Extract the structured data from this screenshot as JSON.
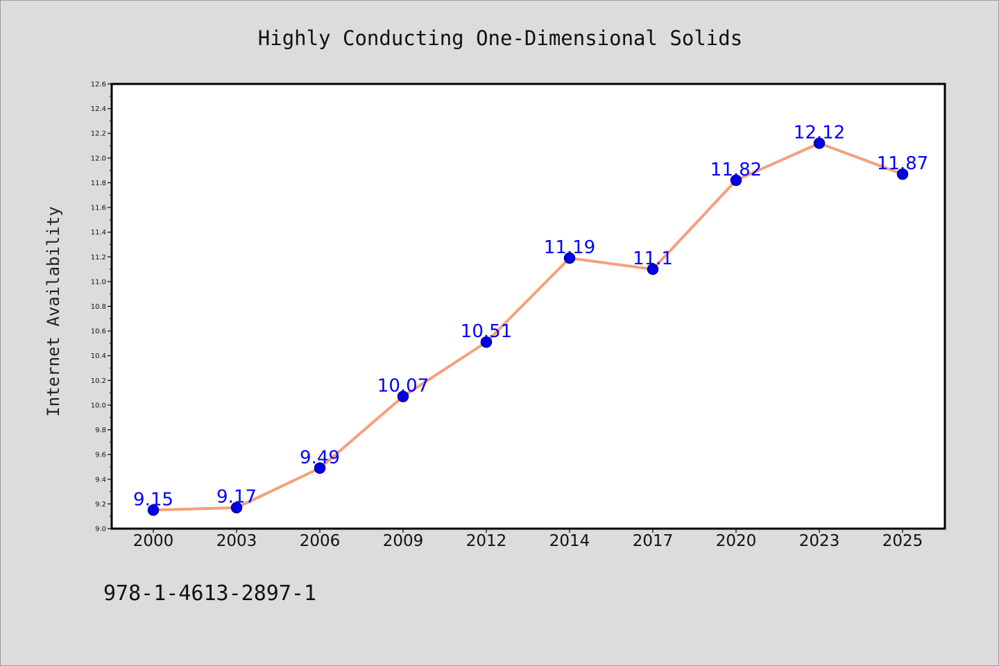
{
  "chart_data": {
    "type": "line",
    "title": "Highly Conducting One-Dimensional Solids",
    "xlabel": "",
    "ylabel": "Internet Availability",
    "categories": [
      "2000",
      "2003",
      "2006",
      "2009",
      "2012",
      "2014",
      "2017",
      "2020",
      "2023",
      "2025"
    ],
    "series": [
      {
        "values": [
          9.15,
          9.17,
          9.49,
          10.07,
          10.51,
          11.19,
          11.1,
          11.82,
          12.12,
          11.87
        ],
        "data_labels": [
          "9.15",
          "9.17",
          "9.49",
          "10.07",
          "10.51",
          "11.19",
          "11.1",
          "11.82",
          "12.12",
          "11.87"
        ]
      }
    ],
    "ylim": [
      9.0,
      12.6
    ],
    "y_ticks": [
      "9.0",
      "9.2",
      "9.4",
      "9.6",
      "9.8",
      "10.0",
      "10.2",
      "10.4",
      "10.6",
      "10.8",
      "11.0",
      "11.2",
      "11.4",
      "11.6",
      "11.8",
      "12.0",
      "12.2",
      "12.4",
      "12.6"
    ],
    "grid": false,
    "legend": "none",
    "colors": {
      "line": "#f5a07a",
      "marker_fill": "#0000ee",
      "marker_stroke": "#00008b",
      "data_label": "#0000ff",
      "plot_background": "#ffffff",
      "figure_background": "#dcdcdc"
    }
  },
  "footer": {
    "isbn": "978-1-4613-2897-1"
  }
}
